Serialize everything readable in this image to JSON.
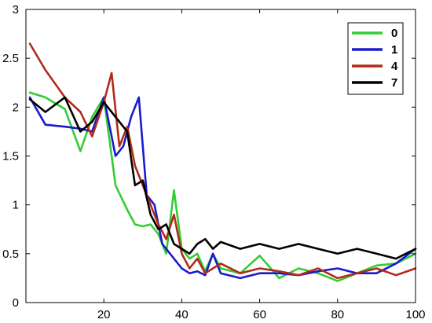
{
  "chart_data": {
    "type": "line",
    "title": "",
    "xlabel": "",
    "ylabel": "",
    "xlim": [
      0,
      100
    ],
    "ylim": [
      0,
      3
    ],
    "xticks": [
      20,
      40,
      60,
      80,
      100
    ],
    "yticks": [
      0,
      0.5,
      1,
      1.5,
      2,
      2.5,
      3
    ],
    "ytick_labels": [
      "0",
      "0.5",
      "1",
      "1.5",
      "2",
      "2.5",
      "3"
    ],
    "xtick_labels": [
      "20",
      "40",
      "60",
      "80",
      "100"
    ],
    "grid": false,
    "legend_position": "top-right",
    "series": [
      {
        "name": "0",
        "color": "#33cc33",
        "x": [
          1,
          5,
          10,
          14,
          17,
          20,
          23,
          26,
          28,
          30,
          32,
          34,
          36,
          38,
          40,
          42,
          44,
          46,
          48,
          50,
          55,
          60,
          65,
          70,
          75,
          80,
          85,
          90,
          95,
          100
        ],
        "y": [
          2.15,
          2.1,
          1.98,
          1.55,
          1.9,
          2.1,
          1.2,
          0.95,
          0.8,
          0.78,
          0.8,
          0.7,
          0.5,
          1.15,
          0.55,
          0.45,
          0.5,
          0.32,
          0.5,
          0.35,
          0.3,
          0.48,
          0.25,
          0.35,
          0.3,
          0.22,
          0.3,
          0.38,
          0.4,
          0.5
        ]
      },
      {
        "name": "1",
        "color": "#1a1acc",
        "x": [
          1,
          5,
          10,
          14,
          17,
          20,
          23,
          25,
          27,
          29,
          31,
          33,
          35,
          37,
          40,
          42,
          44,
          46,
          48,
          50,
          55,
          60,
          65,
          70,
          75,
          80,
          85,
          90,
          95,
          100
        ],
        "y": [
          2.1,
          1.82,
          1.8,
          1.78,
          1.75,
          2.1,
          1.5,
          1.6,
          1.9,
          2.1,
          1.1,
          1.0,
          0.6,
          0.5,
          0.35,
          0.3,
          0.32,
          0.28,
          0.5,
          0.3,
          0.25,
          0.3,
          0.3,
          0.28,
          0.32,
          0.35,
          0.3,
          0.3,
          0.4,
          0.55
        ]
      },
      {
        "name": "4",
        "color": "#b22a1a",
        "x": [
          1,
          5,
          10,
          14,
          17,
          20,
          22,
          24,
          26,
          28,
          30,
          32,
          34,
          36,
          38,
          40,
          42,
          44,
          46,
          48,
          50,
          55,
          60,
          65,
          70,
          75,
          80,
          85,
          90,
          95,
          100
        ],
        "y": [
          2.65,
          2.38,
          2.1,
          1.95,
          1.7,
          2.05,
          2.35,
          1.6,
          1.8,
          1.4,
          1.2,
          1.0,
          0.8,
          0.65,
          0.9,
          0.5,
          0.35,
          0.45,
          0.3,
          0.35,
          0.4,
          0.3,
          0.35,
          0.32,
          0.28,
          0.35,
          0.25,
          0.3,
          0.35,
          0.28,
          0.35
        ]
      },
      {
        "name": "7",
        "color": "#000000",
        "x": [
          1,
          5,
          10,
          14,
          17,
          20,
          23,
          26,
          28,
          30,
          32,
          34,
          36,
          38,
          40,
          42,
          44,
          46,
          48,
          50,
          55,
          60,
          65,
          70,
          75,
          80,
          85,
          90,
          95,
          100
        ],
        "y": [
          2.08,
          1.95,
          2.1,
          1.75,
          1.85,
          2.05,
          1.9,
          1.75,
          1.2,
          1.25,
          0.9,
          0.75,
          0.8,
          0.6,
          0.55,
          0.5,
          0.6,
          0.65,
          0.55,
          0.62,
          0.55,
          0.6,
          0.55,
          0.6,
          0.55,
          0.5,
          0.55,
          0.5,
          0.45,
          0.55
        ]
      }
    ]
  }
}
